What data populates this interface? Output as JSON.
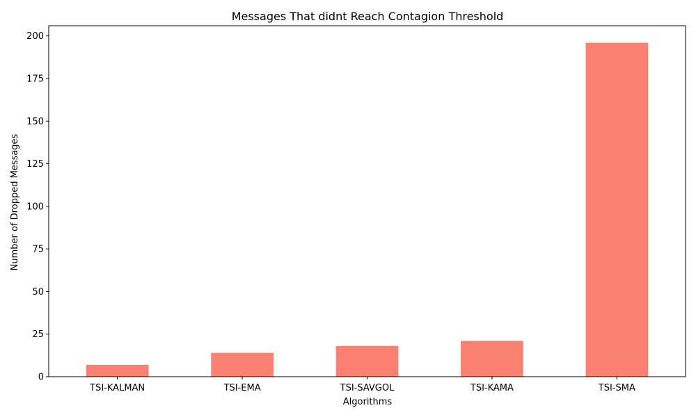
{
  "chart_data": {
    "type": "bar",
    "title": "Messages That didnt Reach Contagion Threshold",
    "xlabel": "Algorithms",
    "ylabel": "Number of Dropped Messages",
    "categories": [
      "TSI-KALMAN",
      "TSI-EMA",
      "TSI-SAVGOL",
      "TSI-KAMA",
      "TSI-SMA"
    ],
    "values": [
      7,
      14,
      18,
      21,
      196
    ],
    "ylim": [
      0,
      206
    ],
    "yticks": [
      0,
      25,
      50,
      75,
      100,
      125,
      150,
      175,
      200
    ],
    "bar_color": "#fa8072",
    "grid": false,
    "legend": "none"
  }
}
